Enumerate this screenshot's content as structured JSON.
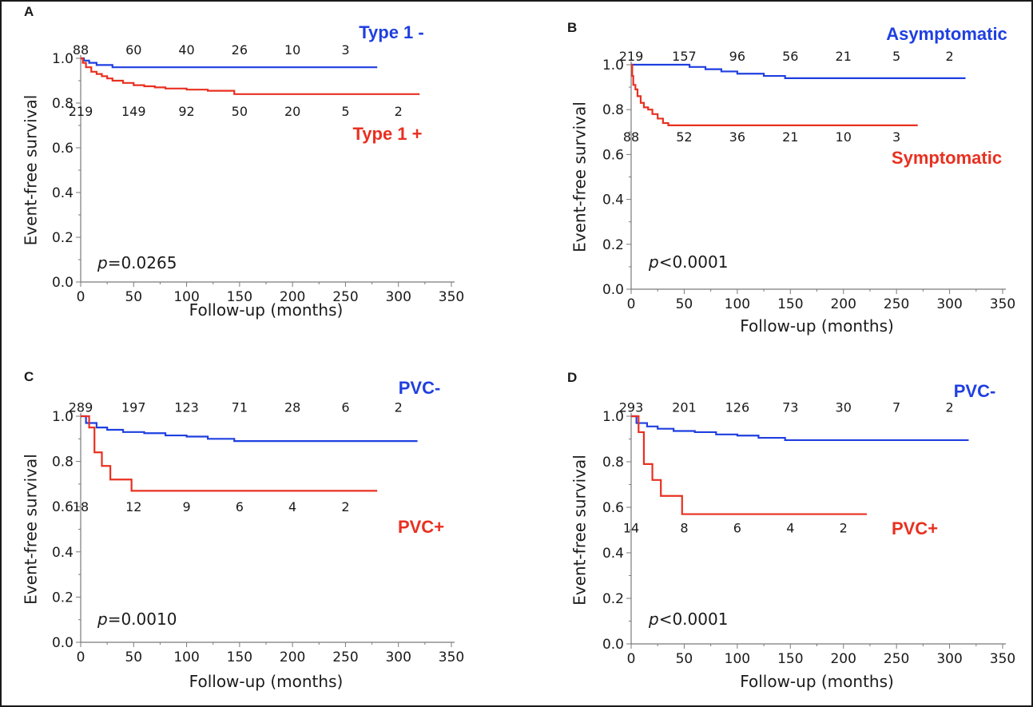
{
  "chart_data": [
    {
      "type": "line",
      "panel": "A",
      "xlabel": "Follow-up (months)",
      "ylabel": "Event-free survival",
      "xlim": [
        0,
        350
      ],
      "ylim": [
        0,
        1
      ],
      "xticks": [
        "0",
        "50",
        "100",
        "150",
        "200",
        "250",
        "300",
        "350"
      ],
      "yticks": [
        "0.0",
        "0.2",
        "0.4",
        "0.6",
        "0.8",
        "1.0"
      ],
      "pvalue": {
        "prefix": "p",
        "text": "=0.0265"
      },
      "series": [
        {
          "name": "Type 1 -",
          "color": "#1f3fe0",
          "x": [
            0,
            3,
            8,
            15,
            30,
            280
          ],
          "y": [
            1.0,
            0.99,
            0.98,
            0.97,
            0.96,
            0.96
          ],
          "at_risk": {
            "labels": [
              "88",
              "60",
              "40",
              "26",
              "10",
              "3"
            ],
            "x": [
              0,
              50,
              100,
              150,
              200,
              250
            ],
            "row_y": 1.04
          }
        },
        {
          "name": "Type 1 +",
          "color": "#e83020",
          "x": [
            0,
            2,
            5,
            10,
            15,
            20,
            25,
            30,
            40,
            50,
            60,
            70,
            80,
            100,
            120,
            145,
            320
          ],
          "y": [
            1.0,
            0.98,
            0.96,
            0.94,
            0.93,
            0.92,
            0.91,
            0.9,
            0.89,
            0.88,
            0.875,
            0.87,
            0.865,
            0.86,
            0.855,
            0.84,
            0.84
          ],
          "at_risk": {
            "labels": [
              "219",
              "149",
              "92",
              "50",
              "20",
              "5",
              "2"
            ],
            "x": [
              0,
              50,
              100,
              150,
              200,
              250,
              300
            ],
            "row_y": 0.765
          }
        }
      ]
    },
    {
      "type": "line",
      "panel": "B",
      "xlabel": "Follow-up (months)",
      "ylabel": "Event-free survival",
      "xlim": [
        0,
        350
      ],
      "ylim": [
        0,
        1
      ],
      "xticks": [
        "0",
        "50",
        "100",
        "150",
        "200",
        "250",
        "300",
        "350"
      ],
      "yticks": [
        "0.0",
        "0.2",
        "0.4",
        "0.6",
        "0.8",
        "1.0"
      ],
      "pvalue": {
        "prefix": "p",
        "text": "<0.0001"
      },
      "series": [
        {
          "name": "Asymptomatic",
          "color": "#1f3fe0",
          "x": [
            0,
            45,
            55,
            70,
            85,
            100,
            125,
            145,
            315
          ],
          "y": [
            1.0,
            1.0,
            0.99,
            0.98,
            0.97,
            0.96,
            0.95,
            0.94,
            0.94
          ],
          "at_risk": {
            "labels": [
              "219",
              "157",
              "96",
              "56",
              "21",
              "5",
              "2"
            ],
            "x": [
              0,
              50,
              100,
              150,
              200,
              250,
              300
            ],
            "row_y": 1.04
          }
        },
        {
          "name": "Symptomatic",
          "color": "#e83020",
          "x": [
            0,
            1,
            2,
            4,
            6,
            9,
            12,
            16,
            20,
            25,
            30,
            35,
            270
          ],
          "y": [
            1.0,
            0.95,
            0.91,
            0.89,
            0.86,
            0.83,
            0.81,
            0.8,
            0.78,
            0.76,
            0.74,
            0.73,
            0.73
          ],
          "at_risk": {
            "labels": [
              "88",
              "52",
              "36",
              "21",
              "10",
              "3"
            ],
            "x": [
              0,
              50,
              100,
              150,
              200,
              250
            ],
            "row_y": 0.68
          }
        }
      ]
    },
    {
      "type": "line",
      "panel": "C",
      "xlabel": "Follow-up (months)",
      "ylabel": "Event-free survival",
      "xlim": [
        0,
        350
      ],
      "ylim": [
        0,
        1
      ],
      "xticks": [
        "0",
        "50",
        "100",
        "150",
        "200",
        "250",
        "300",
        "350"
      ],
      "yticks": [
        "0.0",
        "0.2",
        "0.4",
        "0.6",
        "0.8",
        "1.0"
      ],
      "pvalue": {
        "prefix": "p",
        "text": "=0.0010"
      },
      "series": [
        {
          "name": "PVC-",
          "color": "#1f3fe0",
          "x": [
            0,
            5,
            15,
            25,
            40,
            60,
            80,
            100,
            120,
            145,
            318
          ],
          "y": [
            1.0,
            0.97,
            0.95,
            0.94,
            0.93,
            0.925,
            0.915,
            0.91,
            0.9,
            0.89,
            0.89
          ],
          "at_risk": {
            "labels": [
              "289",
              "197",
              "123",
              "71",
              "28",
              "6",
              "2"
            ],
            "x": [
              0,
              50,
              100,
              150,
              200,
              250,
              300
            ],
            "row_y": 1.04
          }
        },
        {
          "name": "PVC+",
          "color": "#e83020",
          "x": [
            0,
            8,
            13,
            20,
            28,
            48,
            280
          ],
          "y": [
            1.0,
            0.95,
            0.84,
            0.78,
            0.72,
            0.67,
            0.67
          ],
          "at_risk": {
            "labels": [
              "18",
              "12",
              "9",
              "6",
              "4",
              "2"
            ],
            "x": [
              0,
              50,
              100,
              150,
              200,
              250
            ],
            "row_y": 0.6
          }
        }
      ]
    },
    {
      "type": "line",
      "panel": "D",
      "xlabel": "Follow-up (months)",
      "ylabel": "Event-free survival",
      "xlim": [
        0,
        350
      ],
      "ylim": [
        0,
        1
      ],
      "xticks": [
        "0",
        "50",
        "100",
        "150",
        "200",
        "250",
        "300",
        "350"
      ],
      "yticks": [
        "0.0",
        "0.2",
        "0.4",
        "0.6",
        "0.8",
        "1.0"
      ],
      "pvalue": {
        "prefix": "p",
        "text": "<0.0001"
      },
      "series": [
        {
          "name": "PVC-",
          "color": "#1f3fe0",
          "x": [
            0,
            5,
            15,
            25,
            40,
            60,
            80,
            100,
            120,
            145,
            318
          ],
          "y": [
            1.0,
            0.97,
            0.955,
            0.945,
            0.935,
            0.93,
            0.92,
            0.915,
            0.905,
            0.895,
            0.895
          ],
          "at_risk": {
            "labels": [
              "293",
              "201",
              "126",
              "73",
              "30",
              "7",
              "2"
            ],
            "x": [
              0,
              50,
              100,
              150,
              200,
              250,
              300
            ],
            "row_y": 1.04
          }
        },
        {
          "name": "PVC+",
          "color": "#e83020",
          "x": [
            0,
            7,
            12,
            20,
            28,
            48,
            222
          ],
          "y": [
            1.0,
            0.93,
            0.79,
            0.72,
            0.65,
            0.57,
            0.57
          ],
          "at_risk": {
            "labels": [
              "14",
              "8",
              "6",
              "4",
              "2"
            ],
            "x": [
              0,
              50,
              100,
              150,
              200
            ],
            "row_y": 0.51
          }
        }
      ]
    }
  ]
}
